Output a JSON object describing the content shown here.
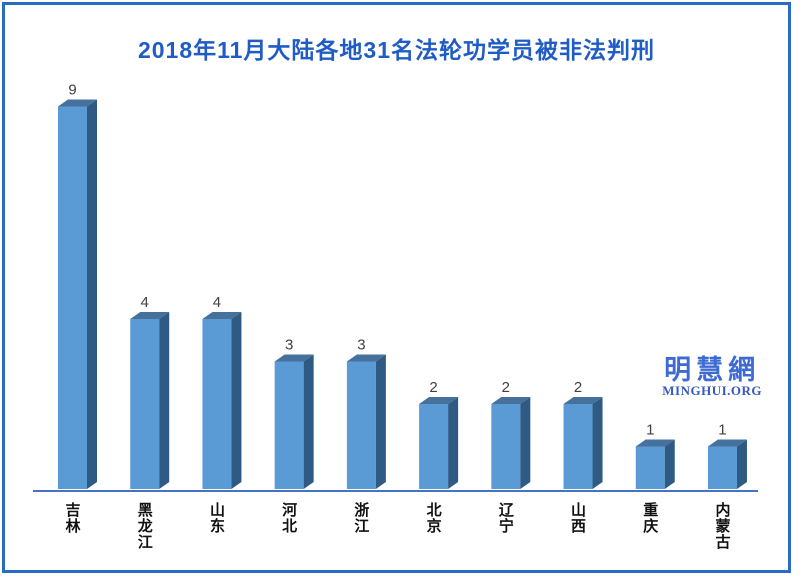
{
  "page": {
    "border_color": "#2a6bc5",
    "background": "#ffffff"
  },
  "title": {
    "text": "2018年11月大陆各地31名法轮功学员被非法判刑",
    "color": "#1f5cc5"
  },
  "watermark": {
    "cjk": "明慧網",
    "latin": "MINGHUI.ORG",
    "color": "#3e6bd3"
  },
  "chart_data": {
    "type": "bar",
    "style": "3d",
    "title": "2018年11月大陆各地31名法轮功学员被非法判刑",
    "categories": [
      "吉林",
      "黑龙江",
      "山东",
      "河北",
      "浙江",
      "北京",
      "辽宁",
      "山西",
      "重庆",
      "内蒙古"
    ],
    "values": [
      9,
      4,
      4,
      3,
      3,
      2,
      2,
      2,
      1,
      1
    ],
    "xlabel": "",
    "ylabel": "",
    "ylim": [
      0,
      9
    ],
    "grid": false,
    "legend": "none",
    "value_labels_shown": true,
    "colors": {
      "bar_front": "#5b9bd5",
      "bar_top": "#46719d",
      "bar_side": "#2e5a84",
      "axis_line": "#4472c4",
      "value_label": "#3f3f3f",
      "category_label": "#111111"
    }
  }
}
